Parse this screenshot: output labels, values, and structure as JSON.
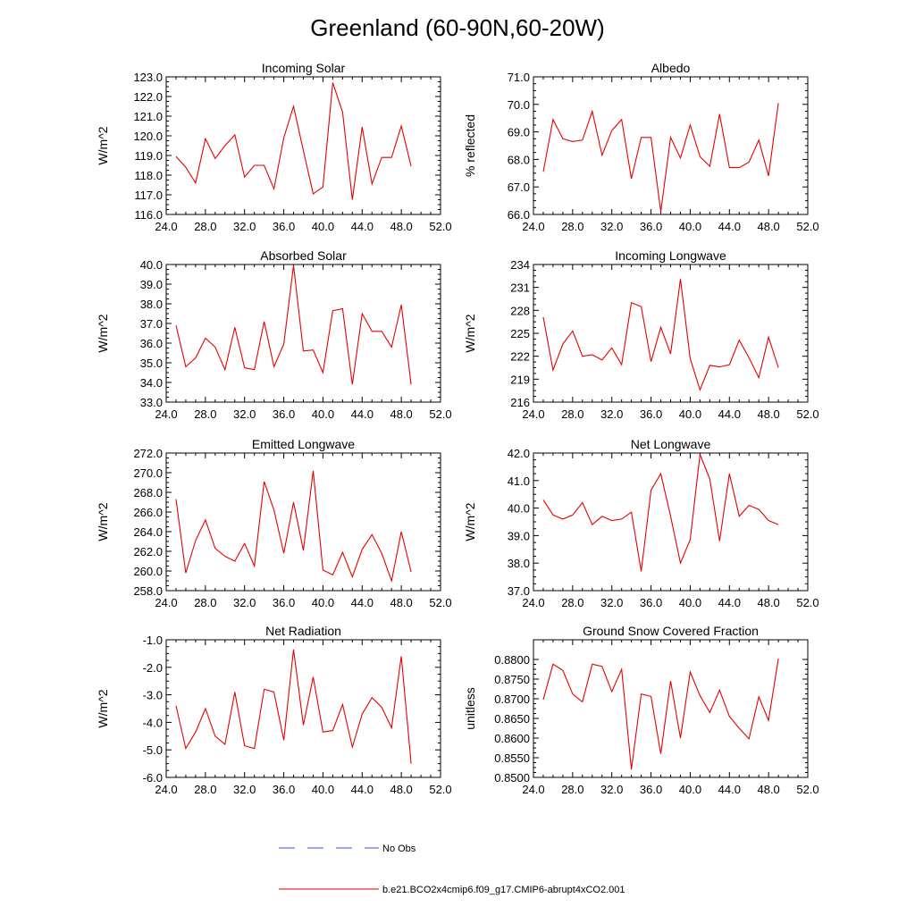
{
  "figure_title": "Greenland (60-90N,60-20W)",
  "legend": [
    {
      "label": "No Obs",
      "color": "#3355cc",
      "style": "dashed"
    },
    {
      "label": "b.e21.BCO2x4cmip6.f09_g17.CMIP6-abrupt4xCO2.001",
      "color": "#e60000",
      "style": "solid"
    }
  ],
  "chart_data": [
    {
      "type": "line",
      "title": "Incoming Solar",
      "ylabel": "W/m^2",
      "xlim": [
        24,
        52
      ],
      "ylim": [
        116,
        123
      ],
      "xticks": [
        "24.0",
        "28.0",
        "32.0",
        "36.0",
        "40.0",
        "44.0",
        "48.0",
        "52.0"
      ],
      "yticks": [
        "116.0",
        "117.0",
        "118.0",
        "119.0",
        "120.0",
        "121.0",
        "122.0",
        "123.0"
      ],
      "x": [
        25,
        26,
        27,
        28,
        29,
        30,
        31,
        32,
        33,
        34,
        35,
        36,
        37,
        38,
        39,
        40,
        41,
        42,
        43,
        44,
        45,
        46,
        47,
        48,
        49
      ],
      "values": [
        118.95,
        118.4,
        117.6,
        119.85,
        118.85,
        119.5,
        120.05,
        117.9,
        118.5,
        118.5,
        117.3,
        119.9,
        121.5,
        119.25,
        117.05,
        117.4,
        122.7,
        121.2,
        116.75,
        120.45,
        117.55,
        118.9,
        118.9,
        120.5,
        118.45
      ]
    },
    {
      "type": "line",
      "title": "Albedo",
      "ylabel": "% reflected",
      "xlim": [
        24,
        52
      ],
      "ylim": [
        66,
        71
      ],
      "xticks": [
        "24.0",
        "28.0",
        "32.0",
        "36.0",
        "40.0",
        "44.0",
        "48.0",
        "52.0"
      ],
      "yticks": [
        "66.0",
        "67.0",
        "68.0",
        "69.0",
        "70.0",
        "71.0"
      ],
      "x": [
        25,
        26,
        27,
        28,
        29,
        30,
        31,
        32,
        33,
        34,
        35,
        36,
        37,
        38,
        39,
        40,
        41,
        42,
        43,
        44,
        45,
        46,
        47,
        48,
        49
      ],
      "values": [
        67.55,
        69.45,
        68.75,
        68.65,
        68.7,
        69.75,
        68.15,
        69.05,
        69.45,
        67.3,
        68.8,
        68.8,
        66.1,
        68.8,
        68.05,
        69.25,
        68.1,
        67.75,
        69.65,
        67.7,
        67.7,
        67.9,
        68.7,
        67.4,
        70.05
      ]
    },
    {
      "type": "line",
      "title": "Absorbed Solar",
      "ylabel": "W/m^2",
      "xlim": [
        24,
        52
      ],
      "ylim": [
        33,
        40
      ],
      "xticks": [
        "24.0",
        "28.0",
        "32.0",
        "36.0",
        "40.0",
        "44.0",
        "48.0",
        "52.0"
      ],
      "yticks": [
        "33.0",
        "34.0",
        "35.0",
        "36.0",
        "37.0",
        "38.0",
        "39.0",
        "40.0"
      ],
      "x": [
        25,
        26,
        27,
        28,
        29,
        30,
        31,
        32,
        33,
        34,
        35,
        36,
        37,
        38,
        39,
        40,
        41,
        42,
        43,
        44,
        45,
        46,
        47,
        48,
        49
      ],
      "values": [
        36.9,
        34.8,
        35.25,
        36.25,
        35.8,
        34.65,
        36.8,
        34.75,
        34.65,
        37.1,
        34.8,
        35.95,
        39.95,
        35.6,
        35.65,
        34.5,
        37.65,
        37.75,
        33.9,
        37.5,
        36.6,
        36.6,
        35.8,
        37.95,
        33.9
      ]
    },
    {
      "type": "line",
      "title": "Incoming Longwave",
      "ylabel": "W/m^2",
      "xlim": [
        24,
        52
      ],
      "ylim": [
        216,
        234
      ],
      "xticks": [
        "24.0",
        "28.0",
        "32.0",
        "36.0",
        "40.0",
        "44.0",
        "48.0",
        "52.0"
      ],
      "yticks": [
        "216",
        "219",
        "222",
        "225",
        "228",
        "231",
        "234"
      ],
      "x": [
        25,
        26,
        27,
        28,
        29,
        30,
        31,
        32,
        33,
        34,
        35,
        36,
        37,
        38,
        39,
        40,
        41,
        42,
        43,
        44,
        45,
        46,
        47,
        48,
        49
      ],
      "values": [
        227.1,
        220.2,
        223.6,
        225.3,
        222.0,
        222.2,
        221.5,
        223.1,
        220.9,
        229.0,
        228.5,
        221.3,
        225.8,
        222.3,
        232.1,
        221.7,
        217.6,
        220.8,
        220.6,
        220.9,
        224.1,
        221.8,
        219.2,
        224.5,
        220.5
      ]
    },
    {
      "type": "line",
      "title": "Emitted Longwave",
      "ylabel": "W/m^2",
      "xlim": [
        24,
        52
      ],
      "ylim": [
        258,
        272
      ],
      "xticks": [
        "24.0",
        "28.0",
        "32.0",
        "36.0",
        "40.0",
        "44.0",
        "48.0",
        "52.0"
      ],
      "yticks": [
        "258.0",
        "260.0",
        "262.0",
        "264.0",
        "266.0",
        "268.0",
        "270.0",
        "272.0"
      ],
      "x": [
        25,
        26,
        27,
        28,
        29,
        30,
        31,
        32,
        33,
        34,
        35,
        36,
        37,
        38,
        39,
        40,
        41,
        42,
        43,
        44,
        45,
        46,
        47,
        48,
        49
      ],
      "values": [
        267.3,
        259.8,
        263.1,
        265.2,
        262.3,
        261.5,
        261.0,
        262.8,
        260.5,
        269.1,
        266.2,
        261.8,
        267.0,
        262.1,
        270.2,
        260.1,
        259.6,
        261.9,
        259.4,
        262.2,
        263.7,
        261.8,
        259.0,
        264.0,
        259.9
      ]
    },
    {
      "type": "line",
      "title": "Net Longwave",
      "ylabel": "W/m^2",
      "xlim": [
        24,
        52
      ],
      "ylim": [
        37,
        42
      ],
      "xticks": [
        "24.0",
        "28.0",
        "32.0",
        "36.0",
        "40.0",
        "44.0",
        "48.0",
        "52.0"
      ],
      "yticks": [
        "37.0",
        "38.0",
        "39.0",
        "40.0",
        "41.0",
        "42.0"
      ],
      "x": [
        25,
        26,
        27,
        28,
        29,
        30,
        31,
        32,
        33,
        34,
        35,
        36,
        37,
        38,
        39,
        40,
        41,
        42,
        43,
        44,
        45,
        46,
        47,
        48,
        49
      ],
      "values": [
        40.3,
        39.75,
        39.6,
        39.75,
        40.2,
        39.4,
        39.7,
        39.55,
        39.6,
        39.85,
        37.7,
        40.65,
        41.25,
        39.7,
        38.0,
        38.85,
        41.95,
        41.05,
        38.8,
        41.25,
        39.7,
        40.1,
        39.95,
        39.55,
        39.4
      ]
    },
    {
      "type": "line",
      "title": "Net Radiation",
      "ylabel": "W/m^2",
      "xlim": [
        24,
        52
      ],
      "ylim": [
        -6,
        -1
      ],
      "xticks": [
        "24.0",
        "28.0",
        "32.0",
        "36.0",
        "40.0",
        "44.0",
        "48.0",
        "52.0"
      ],
      "yticks": [
        "-6.0",
        "-5.0",
        "-4.0",
        "-3.0",
        "-2.0",
        "-1.0"
      ],
      "x": [
        25,
        26,
        27,
        28,
        29,
        30,
        31,
        32,
        33,
        34,
        35,
        36,
        37,
        38,
        39,
        40,
        41,
        42,
        43,
        44,
        45,
        46,
        47,
        48,
        49
      ],
      "values": [
        -3.4,
        -4.95,
        -4.35,
        -3.5,
        -4.5,
        -4.8,
        -2.9,
        -4.85,
        -4.95,
        -2.8,
        -2.9,
        -4.65,
        -1.35,
        -4.1,
        -2.35,
        -4.35,
        -4.3,
        -3.35,
        -4.9,
        -3.7,
        -3.1,
        -3.45,
        -4.2,
        -1.6,
        -5.5
      ]
    },
    {
      "type": "line",
      "title": "Ground Snow Covered Fraction",
      "ylabel": "unitless",
      "xlim": [
        24,
        52
      ],
      "ylim": [
        0.85,
        0.885
      ],
      "xticks": [
        "24.0",
        "28.0",
        "32.0",
        "36.0",
        "40.0",
        "44.0",
        "48.0",
        "52.0"
      ],
      "yticks": [
        "0.8500",
        "0.8550",
        "0.8600",
        "0.8650",
        "0.8700",
        "0.8750",
        "0.8800"
      ],
      "x": [
        25,
        26,
        27,
        28,
        29,
        30,
        31,
        32,
        33,
        34,
        35,
        36,
        37,
        38,
        39,
        40,
        41,
        42,
        43,
        44,
        45,
        46,
        47,
        48,
        49
      ],
      "values": [
        0.8698,
        0.8788,
        0.8772,
        0.8712,
        0.8692,
        0.8788,
        0.8782,
        0.8718,
        0.8775,
        0.852,
        0.8712,
        0.8706,
        0.856,
        0.8745,
        0.86,
        0.8768,
        0.8708,
        0.8665,
        0.8722,
        0.8655,
        0.8625,
        0.8598,
        0.8705,
        0.8645,
        0.8802
      ]
    }
  ]
}
